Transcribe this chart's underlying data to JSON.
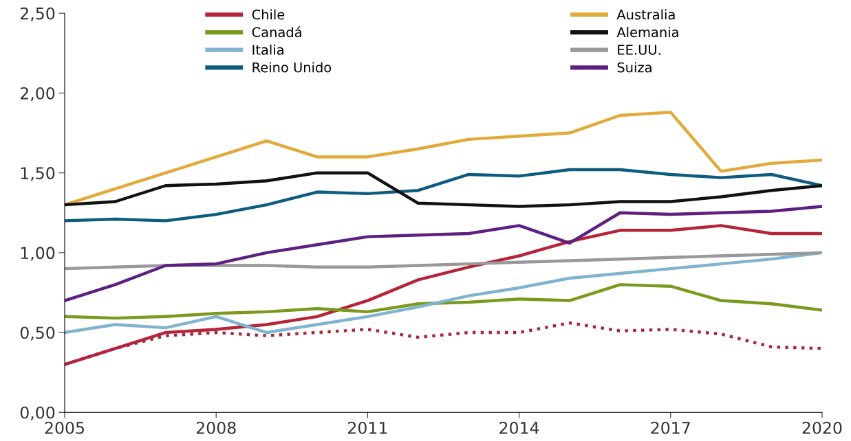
{
  "chart_data": {
    "type": "line",
    "x": [
      2005,
      2006,
      2007,
      2008,
      2009,
      2010,
      2011,
      2012,
      2013,
      2014,
      2015,
      2016,
      2017,
      2018,
      2019,
      2020
    ],
    "series": [
      {
        "name": "Chile",
        "color": "#b5253a",
        "values": [
          0.3,
          0.4,
          0.5,
          0.52,
          0.55,
          0.6,
          0.7,
          0.83,
          0.91,
          0.98,
          1.07,
          1.14,
          1.14,
          1.17,
          1.12,
          1.12
        ]
      },
      {
        "name": "Canadá",
        "color": "#7a9a1e",
        "values": [
          0.6,
          0.59,
          0.6,
          0.62,
          0.63,
          0.65,
          0.63,
          0.68,
          0.69,
          0.71,
          0.7,
          0.8,
          0.79,
          0.7,
          0.68,
          0.64
        ]
      },
      {
        "name": "Italia",
        "color": "#7fb3d0",
        "values": [
          0.5,
          0.55,
          0.53,
          0.6,
          0.5,
          0.55,
          0.6,
          0.66,
          0.73,
          0.78,
          0.84,
          0.87,
          0.9,
          0.93,
          0.96,
          1.0
        ]
      },
      {
        "name": "Reino Unido",
        "color": "#0d5c80",
        "values": [
          1.2,
          1.21,
          1.2,
          1.24,
          1.3,
          1.38,
          1.37,
          1.39,
          1.49,
          1.48,
          1.52,
          1.52,
          1.49,
          1.47,
          1.49,
          1.42
        ]
      },
      {
        "color": "#a8253f",
        "line_style": "dotted",
        "values": [
          0.3,
          0.4,
          0.48,
          0.5,
          0.48,
          0.5,
          0.52,
          0.47,
          0.5,
          0.5,
          0.56,
          0.51,
          0.52,
          0.49,
          0.41,
          0.4
        ]
      },
      {
        "name": "Australia",
        "color": "#e3a93a",
        "values": [
          1.3,
          1.4,
          1.5,
          1.6,
          1.7,
          1.6,
          1.6,
          1.65,
          1.71,
          1.73,
          1.75,
          1.86,
          1.88,
          1.51,
          1.56,
          1.58
        ]
      },
      {
        "name": "Alemania",
        "color": "#111111",
        "values": [
          1.3,
          1.32,
          1.42,
          1.43,
          1.45,
          1.5,
          1.5,
          1.31,
          1.3,
          1.29,
          1.3,
          1.32,
          1.32,
          1.35,
          1.39,
          1.42
        ]
      },
      {
        "name": "EE.UU.",
        "color": "#999999",
        "values": [
          0.9,
          0.91,
          0.92,
          0.92,
          0.92,
          0.91,
          0.91,
          0.92,
          0.93,
          0.94,
          0.95,
          0.96,
          0.97,
          0.98,
          0.99,
          1.0
        ]
      },
      {
        "name": "Suiza",
        "color": "#5e2080",
        "values": [
          0.7,
          0.8,
          0.92,
          0.93,
          1.0,
          1.05,
          1.1,
          1.11,
          1.12,
          1.17,
          1.06,
          1.25,
          1.24,
          1.25,
          1.26,
          1.29
        ]
      }
    ],
    "xlim": [
      2005,
      2020
    ],
    "xticks": [
      2005,
      2008,
      2011,
      2014,
      2017,
      2020
    ],
    "ylim": [
      0,
      2.5
    ],
    "yticks": [
      {
        "value": 0,
        "label": "0,00"
      },
      {
        "value": 0.5,
        "label": "0,50"
      },
      {
        "value": 1,
        "label": "1,00"
      },
      {
        "value": 1.5,
        "label": "1,50"
      },
      {
        "value": 2,
        "label": "2,00"
      },
      {
        "value": 2.5,
        "label": "2,50"
      }
    ],
    "grid": false,
    "legend": "top",
    "line_style": "solid",
    "marker": "none"
  }
}
